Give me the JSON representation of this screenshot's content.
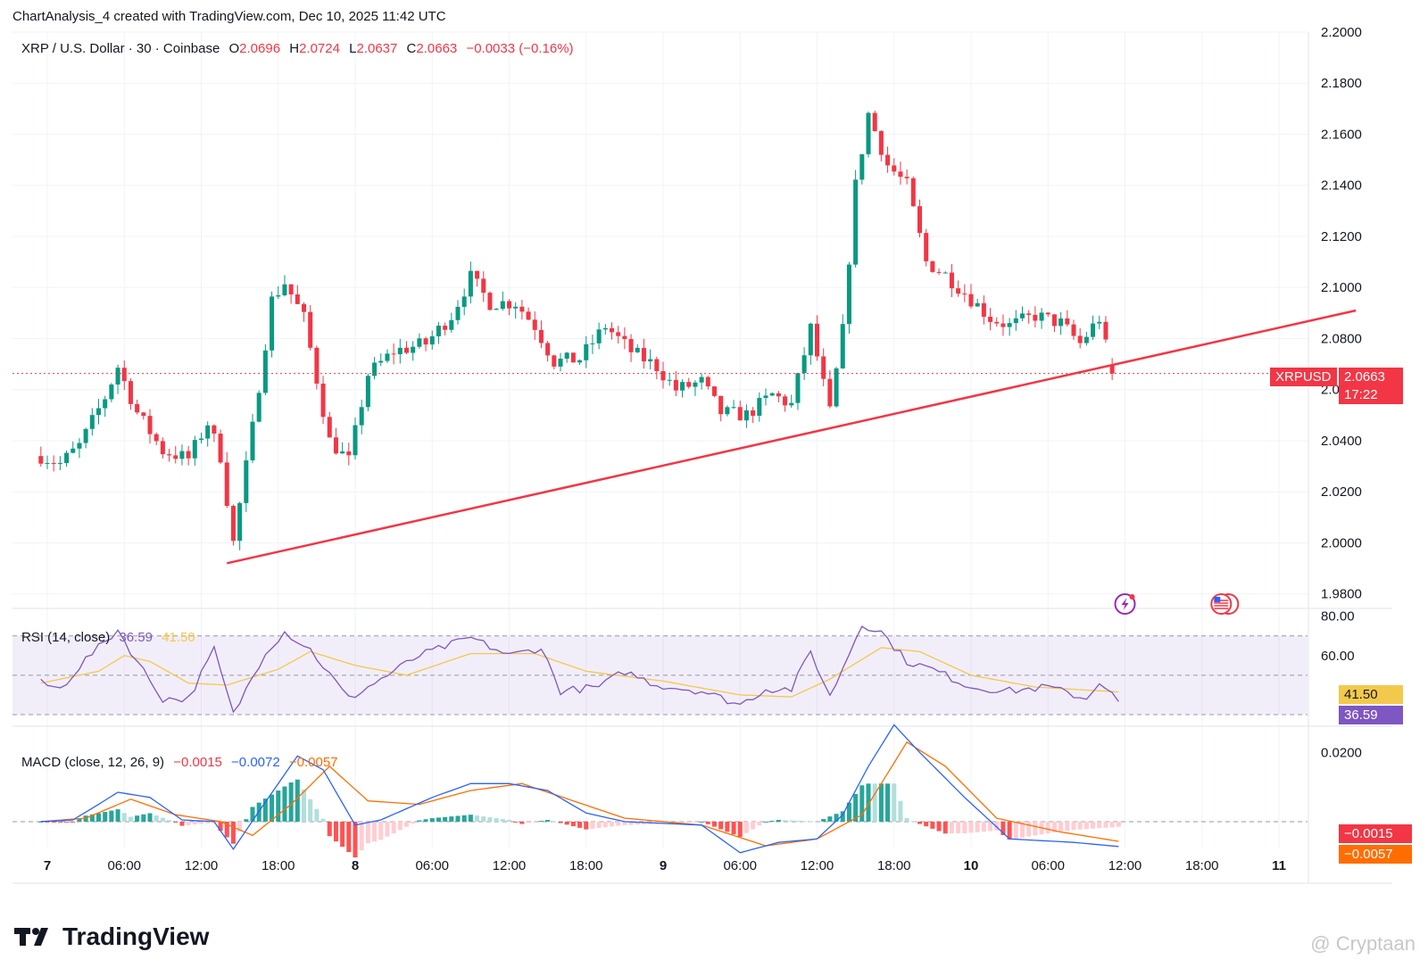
{
  "attribution": "ChartAnalysis_4 created with TradingView.com, Dec 10, 2025 11:42 UTC",
  "legend": {
    "symbol": "XRP / U.S. Dollar · 30 · Coinbase",
    "open_label": "O",
    "open": "2.0696",
    "high_label": "H",
    "high": "2.0724",
    "low_label": "L",
    "low": "2.0637",
    "close_label": "C",
    "close": "2.0663",
    "change": "−0.0033 (−0.16%)"
  },
  "rsi_legend": {
    "label": "RSI (14, close)",
    "rsi": "36.59",
    "ma": "41.50"
  },
  "macd_legend": {
    "label": "MACD (close, 12, 26, 9)",
    "hist": "−0.0015",
    "macd": "−0.0072",
    "signal": "−0.0057"
  },
  "price_tag": {
    "symbol": "XRPUSD",
    "price": "2.0663",
    "countdown": "17:22"
  },
  "rsi_tags": {
    "ma": "41.50",
    "rsi": "36.59"
  },
  "macd_tags": {
    "hist": "−0.0015",
    "signal": "−0.0057"
  },
  "brand": "TradingView",
  "watermark": "@ Cryptaan",
  "colors": {
    "up": "#089981",
    "down": "#f23645",
    "rsi": "#7e57c2",
    "rsi_ma": "#f2c94c",
    "macd": "#2962ff",
    "signal": "#ff6d00",
    "trendline": "#f23645"
  },
  "icons": [
    "lightning-event-icon",
    "us-flag-event-icon",
    "tradingview-logo-icon"
  ],
  "chart_data": [
    {
      "type": "candlestick",
      "title": "XRP / U.S. Dollar · 30 · Coinbase",
      "interval_minutes": 30,
      "ylim": [
        1.975,
        2.2
      ],
      "y_ticks": [
        "1.9800",
        "2.0000",
        "2.0200",
        "2.0400",
        "2.0600",
        "2.0800",
        "2.1000",
        "2.1200",
        "2.1400",
        "2.1600",
        "2.1800",
        "2.2000"
      ],
      "x_ticks": [
        "7",
        "06:00",
        "12:00",
        "18:00",
        "8",
        "06:00",
        "12:00",
        "18:00",
        "9",
        "06:00",
        "12:00",
        "18:00",
        "10",
        "06:00",
        "12:00",
        "18:00",
        "11"
      ],
      "x_tick_times": [
        "Dec 7 00:00",
        "Dec 7 06:00",
        "Dec 7 12:00",
        "Dec 7 18:00",
        "Dec 8 00:00",
        "Dec 8 06:00",
        "Dec 8 12:00",
        "Dec 8 18:00",
        "Dec 9 00:00",
        "Dec 9 06:00",
        "Dec 9 12:00",
        "Dec 9 18:00",
        "Dec 10 00:00",
        "Dec 10 06:00",
        "Dec 10 12:00",
        "Dec 10 18:00",
        "Dec 11 00:00"
      ],
      "last_price": 2.0663,
      "anchor_closes": [
        [
          "Dec 6 23:30",
          2.034
        ],
        [
          "Dec 7 01:00",
          2.031
        ],
        [
          "Dec 7 02:30",
          2.038
        ],
        [
          "Dec 7 04:30",
          2.057
        ],
        [
          "Dec 7 05:30",
          2.069
        ],
        [
          "Dec 7 07:00",
          2.051
        ],
        [
          "Dec 7 09:00",
          2.036
        ],
        [
          "Dec 7 11:00",
          2.033
        ],
        [
          "Dec 7 12:30",
          2.047
        ],
        [
          "Dec 7 13:30",
          2.034
        ],
        [
          "Dec 7 14:30",
          2.0
        ],
        [
          "Dec 7 16:00",
          2.045
        ],
        [
          "Dec 7 17:30",
          2.095
        ],
        [
          "Dec 7 18:30",
          2.102
        ],
        [
          "Dec 7 20:00",
          2.088
        ],
        [
          "Dec 7 22:00",
          2.04
        ],
        [
          "Dec 7 23:30",
          2.032
        ],
        [
          "Dec 8 01:00",
          2.066
        ],
        [
          "Dec 8 03:00",
          2.075
        ],
        [
          "Dec 8 05:30",
          2.078
        ],
        [
          "Dec 8 07:30",
          2.089
        ],
        [
          "Dec 8 09:00",
          2.104
        ],
        [
          "Dec 8 10:30",
          2.094
        ],
        [
          "Dec 8 12:30",
          2.094
        ],
        [
          "Dec 8 14:00",
          2.085
        ],
        [
          "Dec 8 15:30",
          2.071
        ],
        [
          "Dec 8 17:30",
          2.072
        ],
        [
          "Dec 8 19:30",
          2.085
        ],
        [
          "Dec 8 21:30",
          2.075
        ],
        [
          "Dec 8 23:30",
          2.069
        ],
        [
          "Dec 9 01:00",
          2.06
        ],
        [
          "Dec 9 03:00",
          2.063
        ],
        [
          "Dec 9 04:30",
          2.051
        ],
        [
          "Dec 9 06:30",
          2.05
        ],
        [
          "Dec 9 08:30",
          2.058
        ],
        [
          "Dec 9 10:00",
          2.054
        ],
        [
          "Dec 9 11:30",
          2.084
        ],
        [
          "Dec 9 13:00",
          2.051
        ],
        [
          "Dec 9 14:00",
          2.083
        ],
        [
          "Dec 9 15:00",
          2.14
        ],
        [
          "Dec 9 16:00",
          2.168
        ],
        [
          "Dec 9 17:30",
          2.148
        ],
        [
          "Dec 9 19:00",
          2.14
        ],
        [
          "Dec 9 20:30",
          2.11
        ],
        [
          "Dec 9 22:00",
          2.105
        ],
        [
          "Dec 9 23:30",
          2.098
        ],
        [
          "Dec 10 01:30",
          2.088
        ],
        [
          "Dec 10 03:00",
          2.085
        ],
        [
          "Dec 10 05:00",
          2.089
        ],
        [
          "Dec 10 07:00",
          2.086
        ],
        [
          "Dec 10 08:30",
          2.078
        ],
        [
          "Dec 10 10:00",
          2.088
        ],
        [
          "Dec 10 11:00",
          2.066
        ]
      ],
      "trendline": {
        "from": [
          "Dec 7 14:00",
          1.992
        ],
        "to": [
          "Dec 11 06:00",
          2.091
        ],
        "color": "#f23645"
      },
      "price_line": {
        "value": 2.0663,
        "style": "dotted",
        "color": "#f23645"
      },
      "events": [
        {
          "icon": "lightning-event-icon",
          "time": "Dec 10 12:00"
        },
        {
          "icon": "us-flag-event-icon",
          "time": "Dec 10 19:30"
        }
      ],
      "grid": true
    },
    {
      "type": "line",
      "title": "RSI (14, close)",
      "ylim": [
        25,
        83
      ],
      "y_ticks": [
        "60.00",
        "80.00"
      ],
      "bands": [
        30,
        50,
        70
      ],
      "series": [
        {
          "name": "RSI",
          "color": "#7e57c2",
          "last": 36.59
        },
        {
          "name": "RSI MA",
          "color": "#f2c94c",
          "last": 41.5
        }
      ],
      "anchor_rsi": [
        [
          "Dec 6 23:30",
          46
        ],
        [
          "Dec 7 01:00",
          43
        ],
        [
          "Dec 7 03:00",
          58
        ],
        [
          "Dec 7 05:30",
          73
        ],
        [
          "Dec 7 07:00",
          57
        ],
        [
          "Dec 7 09:00",
          38
        ],
        [
          "Dec 7 11:00",
          38
        ],
        [
          "Dec 7 13:00",
          63
        ],
        [
          "Dec 7 14:30",
          30
        ],
        [
          "Dec 7 17:00",
          62
        ],
        [
          "Dec 7 18:30",
          72
        ],
        [
          "Dec 7 20:30",
          63
        ],
        [
          "Dec 7 23:30",
          38
        ],
        [
          "Dec 8 02:00",
          48
        ],
        [
          "Dec 8 05:00",
          60
        ],
        [
          "Dec 8 09:00",
          69
        ],
        [
          "Dec 8 12:00",
          60
        ],
        [
          "Dec 8 14:30",
          64
        ],
        [
          "Dec 8 16:00",
          42
        ],
        [
          "Dec 8 19:00",
          44
        ],
        [
          "Dec 8 21:00",
          52
        ],
        [
          "Dec 8 23:30",
          45
        ],
        [
          "Dec 9 03:00",
          42
        ],
        [
          "Dec 9 06:00",
          35
        ],
        [
          "Dec 9 08:00",
          43
        ],
        [
          "Dec 9 10:00",
          43
        ],
        [
          "Dec 9 11:30",
          62
        ],
        [
          "Dec 9 13:00",
          39
        ],
        [
          "Dec 9 15:30",
          76
        ],
        [
          "Dec 9 17:00",
          72
        ],
        [
          "Dec 9 19:00",
          57
        ],
        [
          "Dec 9 21:00",
          53
        ],
        [
          "Dec 10 00:00",
          44
        ],
        [
          "Dec 10 03:00",
          42
        ],
        [
          "Dec 10 06:00",
          44
        ],
        [
          "Dec 10 09:00",
          38
        ],
        [
          "Dec 10 10:00",
          47
        ],
        [
          "Dec 10 11:30",
          36.59
        ]
      ],
      "anchor_ma": [
        [
          "Dec 6 23:30",
          46
        ],
        [
          "Dec 7 04:00",
          52
        ],
        [
          "Dec 7 06:00",
          60
        ],
        [
          "Dec 7 08:00",
          57
        ],
        [
          "Dec 7 11:00",
          46
        ],
        [
          "Dec 7 14:00",
          45
        ],
        [
          "Dec 7 18:00",
          53
        ],
        [
          "Dec 7 20:30",
          62
        ],
        [
          "Dec 8 00:00",
          55
        ],
        [
          "Dec 8 04:00",
          50
        ],
        [
          "Dec 8 09:00",
          61
        ],
        [
          "Dec 8 14:00",
          61
        ],
        [
          "Dec 8 18:00",
          52
        ],
        [
          "Dec 9 00:00",
          47
        ],
        [
          "Dec 9 06:00",
          40
        ],
        [
          "Dec 9 10:00",
          39
        ],
        [
          "Dec 9 13:00",
          48
        ],
        [
          "Dec 9 17:00",
          64
        ],
        [
          "Dec 9 20:00",
          62
        ],
        [
          "Dec 10 00:00",
          50
        ],
        [
          "Dec 10 05:00",
          44
        ],
        [
          "Dec 10 11:30",
          41.5
        ]
      ],
      "grid": true
    },
    {
      "type": "bar+line",
      "title": "MACD (close, 12, 26, 9)",
      "ylim": [
        -0.0075,
        0.0245
      ],
      "y_ticks": [
        "0.0200"
      ],
      "zero_line": true,
      "series": [
        {
          "name": "Histogram",
          "last": -0.0015,
          "colors": {
            "up_grow": "#26a69a",
            "up_fall": "#b2dfdb",
            "down_grow": "#ffcdd2",
            "down_fall": "#ff5252"
          }
        },
        {
          "name": "MACD",
          "color": "#2962ff",
          "last": -0.0072
        },
        {
          "name": "Signal",
          "color": "#ff6d00",
          "last": -0.0057
        }
      ],
      "anchor_macd": [
        [
          "Dec 6 23:30",
          0.0
        ],
        [
          "Dec 7 02:00",
          0.0005
        ],
        [
          "Dec 7 04:00",
          0.005
        ],
        [
          "Dec 7 05:30",
          0.0085
        ],
        [
          "Dec 7 08:00",
          0.007
        ],
        [
          "Dec 7 10:30",
          0.0005
        ],
        [
          "Dec 7 13:00",
          0.0
        ],
        [
          "Dec 7 14:30",
          -0.008
        ],
        [
          "Dec 7 16:30",
          0.003
        ],
        [
          "Dec 7 19:30",
          0.019
        ],
        [
          "Dec 7 21:30",
          0.015
        ],
        [
          "Dec 8 00:00",
          -0.001
        ],
        [
          "Dec 8 02:00",
          0.0005
        ],
        [
          "Dec 8 06:00",
          0.007
        ],
        [
          "Dec 8 09:00",
          0.011
        ],
        [
          "Dec 8 12:00",
          0.011
        ],
        [
          "Dec 8 15:00",
          0.009
        ],
        [
          "Dec 8 18:00",
          0.0025
        ],
        [
          "Dec 8 21:00",
          0.0
        ],
        [
          "Dec 9 03:00",
          -0.001
        ],
        [
          "Dec 9 06:00",
          -0.009
        ],
        [
          "Dec 9 09:00",
          -0.006
        ],
        [
          "Dec 9 12:00",
          -0.005
        ],
        [
          "Dec 9 14:00",
          0.002
        ],
        [
          "Dec 9 16:00",
          0.016
        ],
        [
          "Dec 9 18:00",
          0.028
        ],
        [
          "Dec 9 20:00",
          0.02
        ],
        [
          "Dec 9 23:30",
          0.007
        ],
        [
          "Dec 10 03:00",
          -0.005
        ],
        [
          "Dec 10 08:00",
          -0.006
        ],
        [
          "Dec 10 11:30",
          -0.0072
        ]
      ],
      "anchor_signal": [
        [
          "Dec 6 23:30",
          0.0
        ],
        [
          "Dec 7 03:00",
          0.001
        ],
        [
          "Dec 7 06:30",
          0.0065
        ],
        [
          "Dec 7 10:00",
          0.002
        ],
        [
          "Dec 7 13:30",
          0.0
        ],
        [
          "Dec 7 16:00",
          -0.004
        ],
        [
          "Dec 7 19:00",
          0.005
        ],
        [
          "Dec 7 22:00",
          0.016
        ],
        [
          "Dec 8 01:00",
          0.006
        ],
        [
          "Dec 8 05:00",
          0.005
        ],
        [
          "Dec 8 09:00",
          0.009
        ],
        [
          "Dec 8 13:00",
          0.011
        ],
        [
          "Dec 8 17:00",
          0.006
        ],
        [
          "Dec 8 21:00",
          0.001
        ],
        [
          "Dec 9 03:00",
          -0.001
        ],
        [
          "Dec 9 08:00",
          -0.007
        ],
        [
          "Dec 9 12:00",
          -0.005
        ],
        [
          "Dec 9 15:30",
          0.002
        ],
        [
          "Dec 9 19:00",
          0.023
        ],
        [
          "Dec 9 22:00",
          0.016
        ],
        [
          "Dec 10 02:00",
          0.001
        ],
        [
          "Dec 10 07:00",
          -0.003
        ],
        [
          "Dec 10 11:30",
          -0.0057
        ]
      ],
      "grid": true
    }
  ]
}
